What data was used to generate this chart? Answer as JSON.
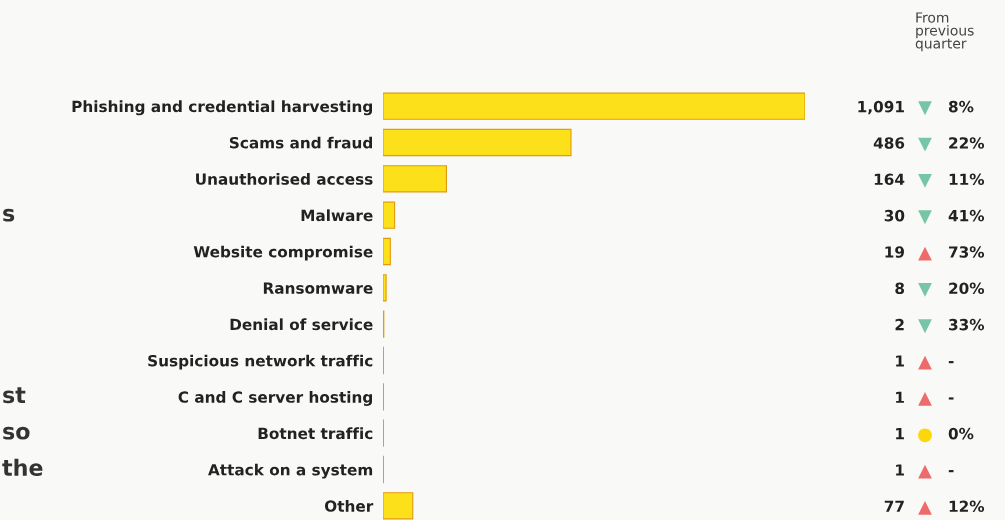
{
  "chart_data": {
    "type": "bar",
    "orientation": "horizontal",
    "value_labels": [
      "1,091",
      "486",
      "164",
      "30",
      "19",
      "8",
      "2",
      "1",
      "1",
      "1",
      "1",
      "77"
    ],
    "categories": [
      "Phishing and credential harvesting",
      "Scams and fraud",
      "Unauthorised access",
      "Malware",
      "Website compromise",
      "Ransomware",
      "Denial of service",
      "Suspicious network traffic",
      "C and C server hosting",
      "Botnet traffic",
      "Attack on a system",
      "Other"
    ],
    "values": [
      1091,
      486,
      164,
      30,
      19,
      8,
      2,
      1,
      1,
      1,
      1,
      77
    ],
    "color": "#fce01a",
    "annotations": [
      "From\nprevious\nquarter",
      "▼ 8%",
      "▼ 22%",
      "▼ 11%",
      "▼ 41%",
      "▲ 73%",
      "▼ 20%",
      "▼ 33%",
      "▲ -",
      "▲ -",
      "● 0%",
      "▲ -",
      "▲ 12%",
      "s",
      "st",
      "so",
      "the"
    ]
  }
}
